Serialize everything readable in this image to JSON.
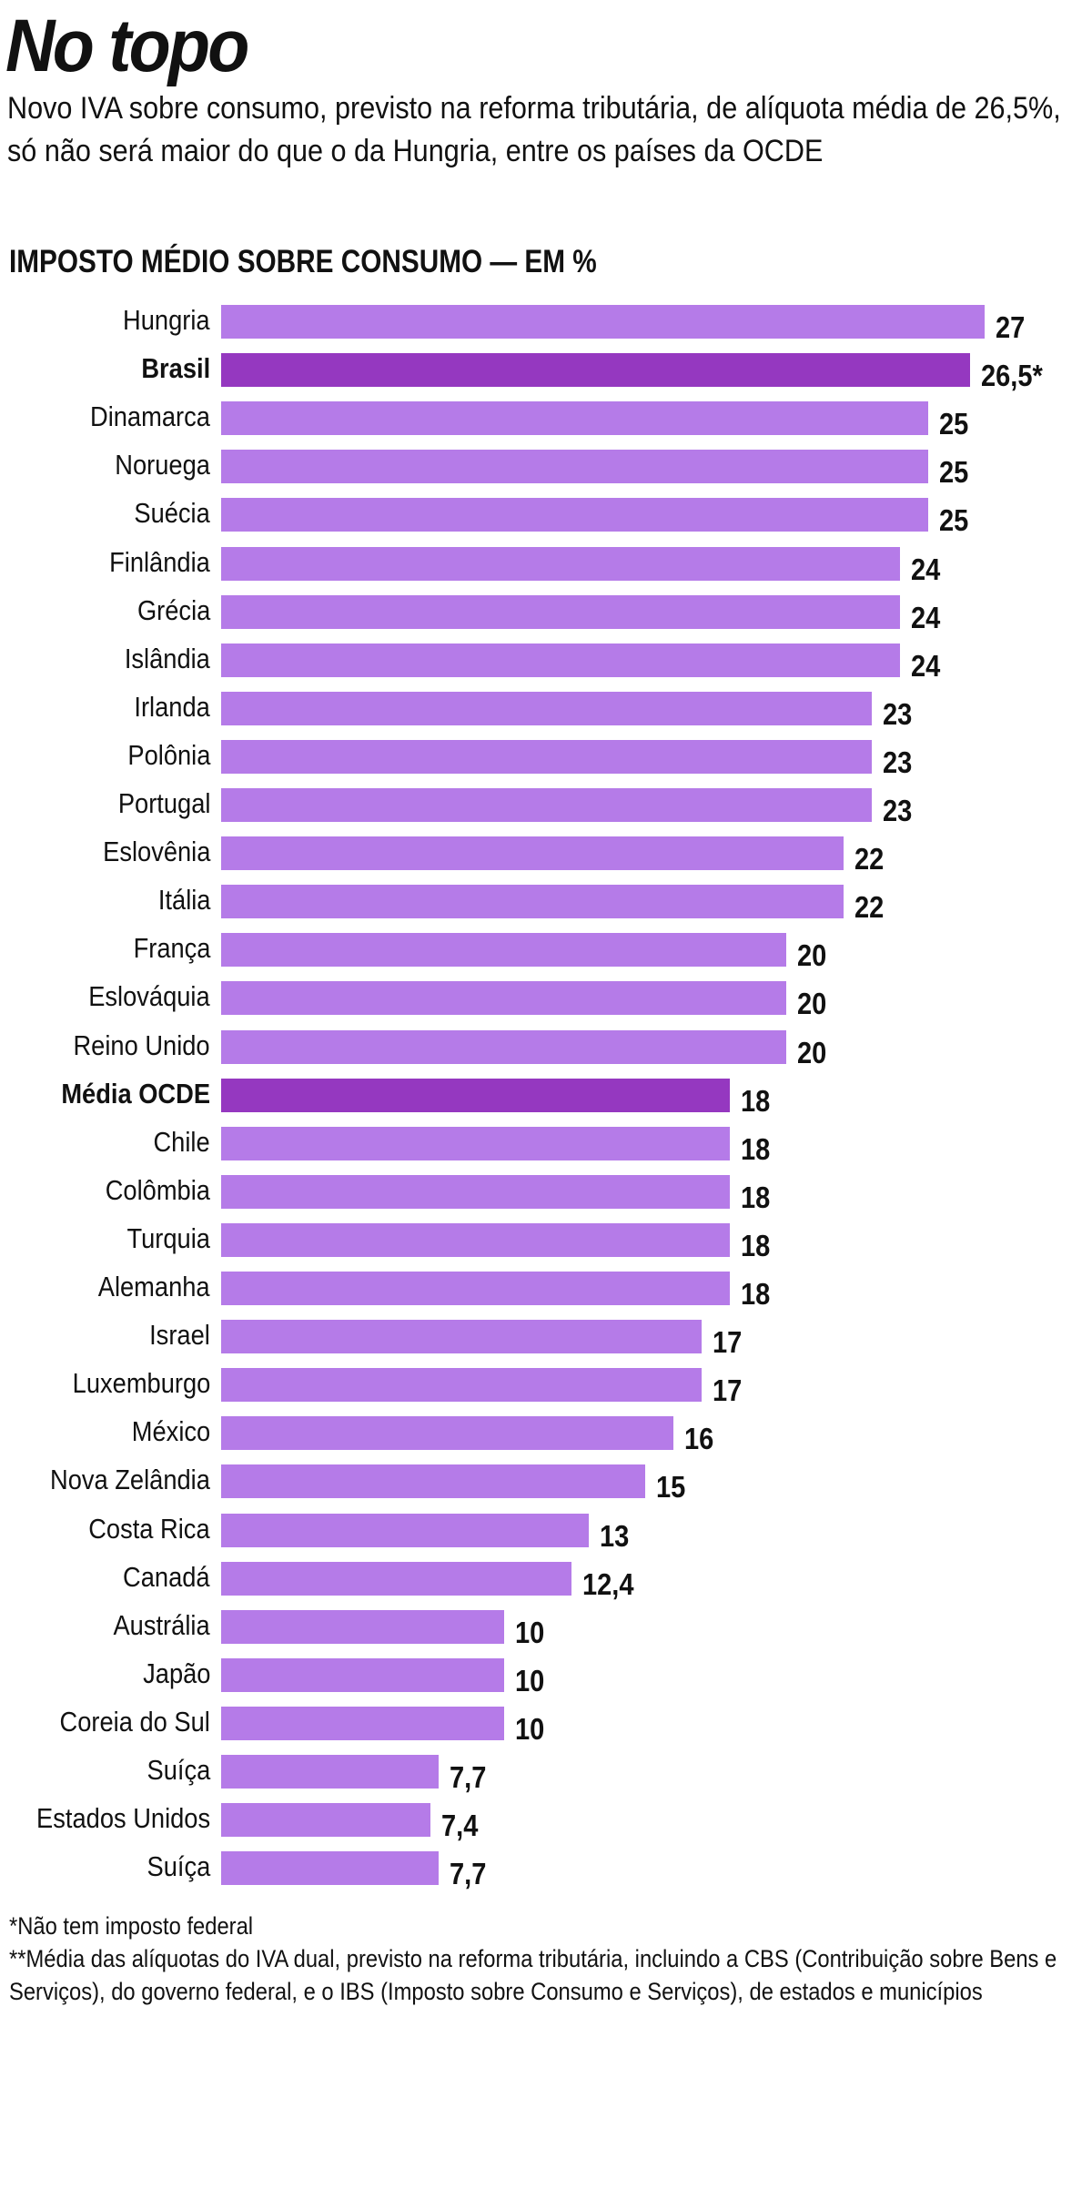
{
  "header": {
    "title": "No topo",
    "subtitle": "Novo IVA sobre consumo, previsto na reforma tributária, de alíquota média de 26,5%, só não será maior do que o da Hungria, entre os países da OCDE"
  },
  "chart_data": {
    "type": "bar",
    "orientation": "horizontal",
    "title": "IMPOSTO MÉDIO SOBRE CONSUMO — EM %",
    "xlim": [
      0,
      27
    ],
    "grid": false,
    "colors": {
      "default": "#b57be8",
      "highlight": "#9538c0"
    },
    "categories": [
      "Hungria",
      "Brasil",
      "Dinamarca",
      "Noruega",
      "Suécia",
      "Finlândia",
      "Grécia",
      "Islândia",
      "Irlanda",
      "Polônia",
      "Portugal",
      "Eslovênia",
      "Itália",
      "França",
      "Eslováquia",
      "Reino Unido",
      "Média OCDE",
      "Chile",
      "Colômbia",
      "Turquia",
      "Alemanha",
      "Israel",
      "Luxemburgo",
      "México",
      "Nova Zelândia",
      "Costa Rica",
      "Canadá",
      "Austrália",
      "Japão",
      "Coreia do Sul",
      "Suíça",
      "Estados Unidos",
      "Suíça"
    ],
    "values": [
      27,
      26.5,
      25,
      25,
      25,
      24,
      24,
      24,
      23,
      23,
      23,
      22,
      22,
      20,
      20,
      20,
      18,
      18,
      18,
      18,
      18,
      17,
      17,
      16,
      15,
      13,
      12.4,
      10,
      10,
      10,
      7.7,
      7.4,
      7.7
    ],
    "value_labels": [
      "27",
      "26,5*",
      "25",
      "25",
      "25",
      "24",
      "24",
      "24",
      "23",
      "23",
      "23",
      "22",
      "22",
      "20",
      "20",
      "20",
      "18",
      "18",
      "18",
      "18",
      "18",
      "17",
      "17",
      "16",
      "15",
      "13",
      "12,4",
      "10",
      "10",
      "10",
      "7,7",
      "7,4",
      "7,7"
    ],
    "highlighted": [
      "Brasil",
      "Média OCDE"
    ]
  },
  "footnotes": [
    "*Não tem imposto federal",
    "**Média das alíquotas do IVA dual, previsto na reforma tributária, incluindo a CBS (Contribuição sobre Bens e Serviços), do governo federal, e o IBS (Imposto sobre Consumo e Serviços), de estados e municípios"
  ]
}
